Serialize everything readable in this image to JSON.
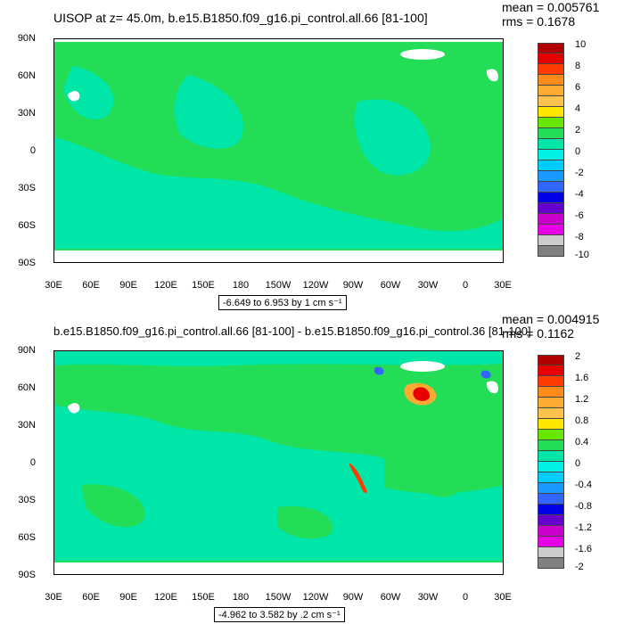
{
  "panels": [
    {
      "title": "UISOP at z=  45.0m, b.e15.B1850.f09_g16.pi_control.all.66 [81-100]",
      "mean_label": "mean = 0.005761",
      "rms_label": "rms = 0.1678",
      "range_label": "-6.649 to 6.953 by 1 cm s⁻¹",
      "colorbar_labels": [
        "10",
        "8",
        "6",
        "4",
        "2",
        "0",
        "-2",
        "-4",
        "-6",
        "-8",
        "-10"
      ]
    },
    {
      "title": "b.e15.B1850.f09_g16.pi_control.all.66 [81-100] - b.e15.B1850.f09_g16.pi_control.36 [81-100]",
      "mean_label": "mean = 0.004915",
      "rms_label": "rms = 0.1162",
      "range_label": "-4.962 to 3.582 by .2 cm s⁻¹",
      "colorbar_labels": [
        "2",
        "1.6",
        "1.2",
        "0.8",
        "0.4",
        "0",
        "-0.4",
        "-0.8",
        "-1.2",
        "-1.6",
        "-2"
      ]
    }
  ],
  "axes": {
    "lat_labels": [
      "90N",
      "60N",
      "30N",
      "0",
      "30S",
      "60S",
      "90S"
    ],
    "lon_labels": [
      "30E",
      "60E",
      "90E",
      "120E",
      "150E",
      "180",
      "150W",
      "120W",
      "90W",
      "60W",
      "30W",
      "0",
      "30E"
    ]
  },
  "colors": {
    "colorbar": [
      "#b20000",
      "#e60000",
      "#ff3c00",
      "#ff8c1a",
      "#ffaa33",
      "#ffc24d",
      "#ffe600",
      "#66e600",
      "#22dd55",
      "#00e6a8",
      "#00f2e6",
      "#00ccff",
      "#1a99ff",
      "#3366ff",
      "#0000e6",
      "#6600cc",
      "#cc00cc",
      "#e600e6",
      "#cccccc",
      "#808080",
      "#5a5a5a"
    ],
    "ocean_main": "#22dd55",
    "ocean_low": "#00e6a8",
    "land": "#ffffff"
  }
}
